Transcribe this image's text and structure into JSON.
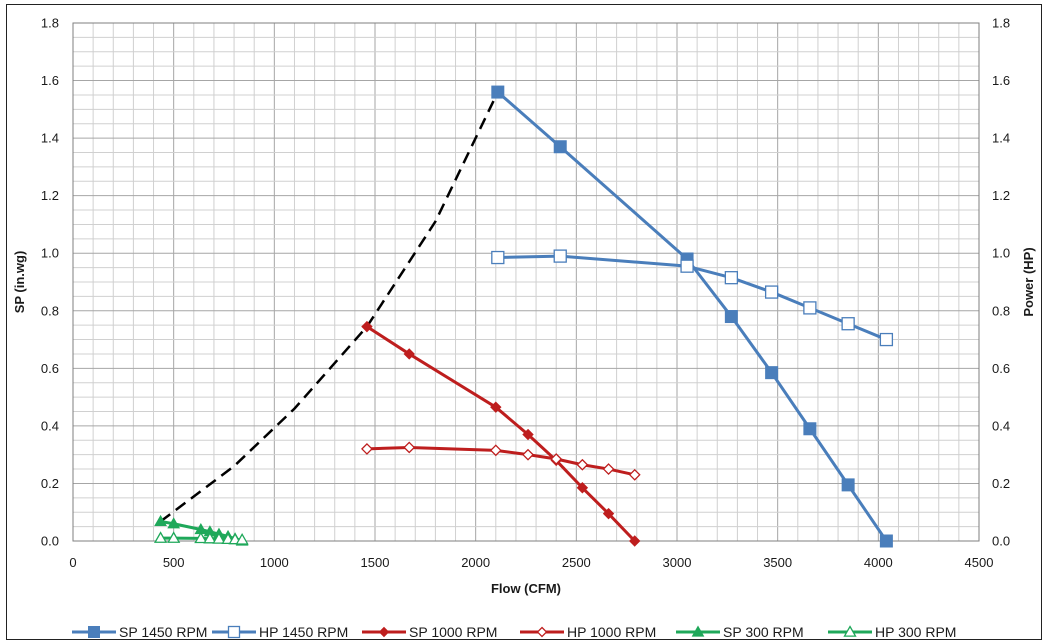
{
  "chart_data": {
    "type": "line",
    "xlabel": "Flow (CFM)",
    "ylabel": "SP (in.wg)",
    "y2label": "Power (HP)",
    "xlim": [
      0,
      4500
    ],
    "ylim": [
      0,
      1.8
    ],
    "y2lim": [
      0,
      1.8
    ],
    "x_ticks": [
      0,
      500,
      1000,
      1500,
      2000,
      2500,
      3000,
      3500,
      4000,
      4500
    ],
    "y_ticks": [
      0.0,
      0.2,
      0.4,
      0.6,
      0.8,
      1.0,
      1.2,
      1.4,
      1.6,
      1.8
    ],
    "x_tick_labels": [
      "0",
      "500",
      "1000",
      "1500",
      "2000",
      "2500",
      "3000",
      "3500",
      "4000",
      "4500"
    ],
    "y_tick_labels": [
      "0.0",
      "0.2",
      "0.4",
      "0.6",
      "0.8",
      "1.0",
      "1.2",
      "1.4",
      "1.6",
      "1.8"
    ],
    "y2_tick_labels": [
      "0.0",
      "0.2",
      "0.4",
      "0.6",
      "0.8",
      "1.0",
      "1.2",
      "1.4",
      "1.6",
      "1.8"
    ],
    "grid": true,
    "minor_grid": true,
    "legend_position": "bottom",
    "series": [
      {
        "name": "SP 1450 RPM",
        "color": "#4a7ebb",
        "marker": "square-filled",
        "axis": "left",
        "x": [
          2110,
          2420,
          3050,
          3270,
          3470,
          3660,
          3850,
          4040
        ],
        "y": [
          1.56,
          1.37,
          0.98,
          0.78,
          0.585,
          0.39,
          0.195,
          0.0
        ]
      },
      {
        "name": "HP 1450 RPM",
        "color": "#4a7ebb",
        "marker": "square-open",
        "axis": "right",
        "x": [
          2110,
          2420,
          3050,
          3270,
          3470,
          3660,
          3850,
          4040
        ],
        "y": [
          0.985,
          0.99,
          0.955,
          0.915,
          0.865,
          0.81,
          0.755,
          0.7
        ]
      },
      {
        "name": "SP 1000 RPM",
        "color": "#be1e1e",
        "marker": "diamond-filled",
        "axis": "left",
        "x": [
          1460,
          1670,
          2100,
          2260,
          2400,
          2530,
          2660,
          2790
        ],
        "y": [
          0.745,
          0.65,
          0.465,
          0.37,
          0.28,
          0.185,
          0.095,
          0.0
        ]
      },
      {
        "name": "HP 1000 RPM",
        "color": "#be1e1e",
        "marker": "diamond-open",
        "axis": "right",
        "x": [
          1460,
          1670,
          2100,
          2260,
          2400,
          2530,
          2660,
          2790
        ],
        "y": [
          0.32,
          0.325,
          0.315,
          0.3,
          0.285,
          0.265,
          0.25,
          0.23
        ]
      },
      {
        "name": "SP 300 RPM",
        "color": "#1fa85a",
        "marker": "triangle-filled",
        "axis": "left",
        "x": [
          435,
          500,
          635,
          680,
          725,
          770,
          805,
          840
        ],
        "y": [
          0.068,
          0.06,
          0.04,
          0.032,
          0.024,
          0.016,
          0.008,
          0.0
        ]
      },
      {
        "name": "HP 300 RPM",
        "color": "#1fa85a",
        "marker": "triangle-open",
        "axis": "right",
        "x": [
          435,
          500,
          635,
          680,
          725,
          770,
          805,
          840
        ],
        "y": [
          0.01,
          0.01,
          0.009,
          0.008,
          0.007,
          0.006,
          0.005,
          0.004
        ]
      }
    ],
    "system_curve": {
      "color": "#000000",
      "style": "dashed",
      "x": [
        435,
        800,
        1100,
        1460,
        1800,
        2110
      ],
      "y": [
        0.068,
        0.26,
        0.46,
        0.745,
        1.11,
        1.56
      ]
    }
  }
}
